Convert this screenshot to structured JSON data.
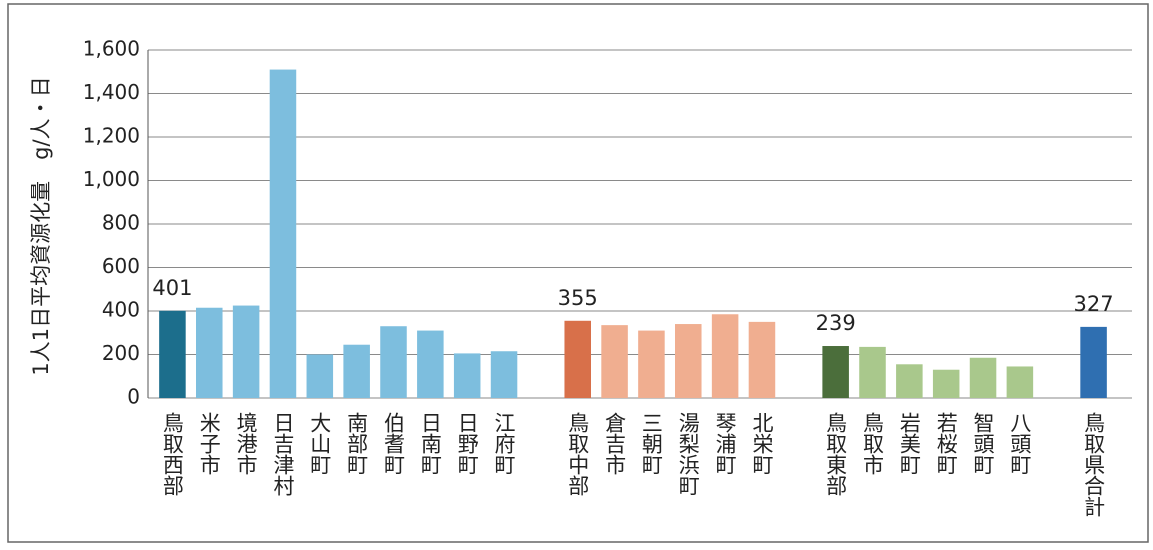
{
  "chart_data": {
    "type": "bar",
    "ylabel": "1人1日平均資源化量　g/人・日",
    "categories": [
      "鳥取西部",
      "米子市",
      "境港市",
      "日吉津村",
      "大山町",
      "南部町",
      "伯耆町",
      "日南町",
      "日野町",
      "江府町",
      null,
      "鳥取中部",
      "倉吉市",
      "三朝町",
      "湯梨浜町",
      "琴浦町",
      "北栄町",
      null,
      "鳥取東部",
      "鳥取市",
      "岩美町",
      "若桜町",
      "智頭町",
      "八頭町",
      null,
      "鳥取県合計"
    ],
    "values": [
      401,
      415,
      425,
      1510,
      200,
      245,
      330,
      310,
      205,
      215,
      null,
      355,
      335,
      310,
      340,
      385,
      350,
      null,
      239,
      235,
      155,
      130,
      185,
      145,
      null,
      327
    ],
    "value_labels": [
      "401",
      null,
      null,
      null,
      null,
      null,
      null,
      null,
      null,
      null,
      null,
      "355",
      null,
      null,
      null,
      null,
      null,
      null,
      "239",
      null,
      null,
      null,
      null,
      null,
      null,
      "327"
    ],
    "colors": [
      "#1c6e8c",
      "#7dbede",
      "#7dbede",
      "#7dbede",
      "#7dbede",
      "#7dbede",
      "#7dbede",
      "#7dbede",
      "#7dbede",
      "#7dbede",
      null,
      "#d8704a",
      "#f0ae90",
      "#f0ae90",
      "#f0ae90",
      "#f0ae90",
      "#f0ae90",
      null,
      "#4b6e3b",
      "#a9c88c",
      "#a9c88c",
      "#a9c88c",
      "#a9c88c",
      "#a9c88c",
      null,
      "#2f6fb1"
    ],
    "ylim": [
      0,
      1600
    ],
    "yticks": [
      0,
      200,
      400,
      600,
      800,
      {
        "value": 1000,
        "label": "1,000"
      },
      {
        "value": 1200,
        "label": "1,200"
      },
      {
        "value": 1400,
        "label": "1,400"
      },
      {
        "value": 1600,
        "label": "1,600"
      }
    ],
    "grid": true
  }
}
